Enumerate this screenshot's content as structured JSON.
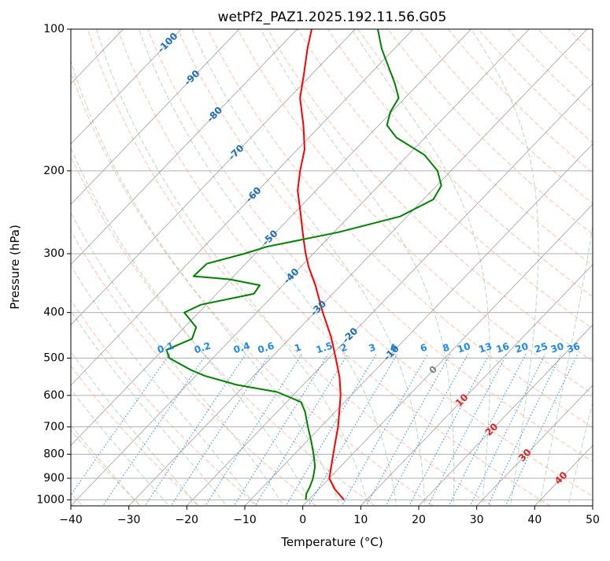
{
  "chart_data": {
    "type": "line",
    "subtype": "skew-t log-p thermodynamic diagram",
    "title": "wetPf2_PAZ1.2025.192.11.56.G05",
    "xlabel": "Temperature (°C)",
    "ylabel": "Pressure (hPa)",
    "xlim": [
      -40,
      50
    ],
    "ylim": [
      1030,
      100
    ],
    "y_scale": "log",
    "x_ticks": [
      -40,
      -30,
      -20,
      -10,
      0,
      10,
      20,
      30,
      40,
      50
    ],
    "x_tick_labels": [
      "−40",
      "−30",
      "−20",
      "−10",
      "0",
      "10",
      "20",
      "30",
      "40",
      "50"
    ],
    "y_ticks": [
      100,
      200,
      300,
      400,
      500,
      600,
      700,
      800,
      900,
      1000
    ],
    "y_tick_labels": [
      "100",
      "200",
      "300",
      "400",
      "500",
      "600",
      "700",
      "800",
      "900",
      "1000"
    ],
    "grid": true,
    "skew_isotherm_labels": [
      "-100",
      "-90",
      "-80",
      "-70",
      "-60",
      "-50",
      "-40",
      "-30",
      "-20",
      "-10",
      "0",
      "10",
      "20",
      "30",
      "40"
    ],
    "mixing_ratio_labels": [
      "0.1",
      "0.2",
      "0.4",
      "0.6",
      "1",
      "1.5",
      "2",
      "3",
      "4",
      "6",
      "8",
      "10",
      "13",
      "16",
      "20",
      "25",
      "30",
      "36"
    ],
    "colors": {
      "temperature": "#ff0000",
      "dewpoint": "#008000",
      "isotherm": "#808080",
      "dry_adiabat": "#ff8c69",
      "moist_adiabat": "#8fbc8f",
      "mixing_ratio": "#1e88e5",
      "label_cold": "#1f6fb0",
      "label_zero": "#808080",
      "label_warm": "#d62728",
      "mixing_label": "#1e88e5"
    },
    "series": [
      {
        "name": "Temperature",
        "points": [
          {
            "p": 1000,
            "t": 6.1
          },
          {
            "p": 950,
            "t": 2.8
          },
          {
            "p": 900,
            "t": 0.0
          },
          {
            "p": 850,
            "t": -1.6
          },
          {
            "p": 800,
            "t": -3.3
          },
          {
            "p": 750,
            "t": -5.1
          },
          {
            "p": 700,
            "t": -7.0
          },
          {
            "p": 650,
            "t": -9.3
          },
          {
            "p": 600,
            "t": -11.8
          },
          {
            "p": 550,
            "t": -14.9
          },
          {
            "p": 500,
            "t": -18.8
          },
          {
            "p": 450,
            "t": -23.2
          },
          {
            "p": 400,
            "t": -28.6
          },
          {
            "p": 350,
            "t": -34.4
          },
          {
            "p": 320,
            "t": -38.6
          },
          {
            "p": 300,
            "t": -41.3
          },
          {
            "p": 280,
            "t": -44.0
          },
          {
            "p": 250,
            "t": -48.3
          },
          {
            "p": 220,
            "t": -53.2
          },
          {
            "p": 200,
            "t": -56.0
          },
          {
            "p": 180,
            "t": -58.8
          },
          {
            "p": 160,
            "t": -63.0
          },
          {
            "p": 140,
            "t": -68.1
          },
          {
            "p": 125,
            "t": -71.3
          },
          {
            "p": 110,
            "t": -75.0
          },
          {
            "p": 100,
            "t": -77.5
          }
        ]
      },
      {
        "name": "Dewpoint",
        "points": [
          {
            "p": 1000,
            "t": -0.5
          },
          {
            "p": 970,
            "t": -1.4
          },
          {
            "p": 940,
            "t": -1.9
          },
          {
            "p": 900,
            "t": -2.8
          },
          {
            "p": 850,
            "t": -4.4
          },
          {
            "p": 800,
            "t": -6.7
          },
          {
            "p": 750,
            "t": -9.3
          },
          {
            "p": 700,
            "t": -12.2
          },
          {
            "p": 650,
            "t": -15.2
          },
          {
            "p": 620,
            "t": -17.5
          },
          {
            "p": 590,
            "t": -23.3
          },
          {
            "p": 570,
            "t": -31.4
          },
          {
            "p": 545,
            "t": -38.5
          },
          {
            "p": 530,
            "t": -41.8
          },
          {
            "p": 500,
            "t": -47.5
          },
          {
            "p": 480,
            "t": -49.4
          },
          {
            "p": 455,
            "t": -46.8
          },
          {
            "p": 430,
            "t": -48.0
          },
          {
            "p": 400,
            "t": -52.5
          },
          {
            "p": 385,
            "t": -50.9
          },
          {
            "p": 365,
            "t": -43.6
          },
          {
            "p": 350,
            "t": -44.0
          },
          {
            "p": 340,
            "t": -50.2
          },
          {
            "p": 335,
            "t": -56.9
          },
          {
            "p": 315,
            "t": -56.7
          },
          {
            "p": 300,
            "t": -51.9
          },
          {
            "p": 290,
            "t": -49.2
          },
          {
            "p": 270,
            "t": -39.2
          },
          {
            "p": 250,
            "t": -31.2
          },
          {
            "p": 230,
            "t": -28.3
          },
          {
            "p": 215,
            "t": -29.2
          },
          {
            "p": 200,
            "t": -32.3
          },
          {
            "p": 185,
            "t": -37.2
          },
          {
            "p": 170,
            "t": -44.9
          },
          {
            "p": 160,
            "t": -48.6
          },
          {
            "p": 150,
            "t": -50.2
          },
          {
            "p": 140,
            "t": -51.1
          },
          {
            "p": 130,
            "t": -54.3
          },
          {
            "p": 120,
            "t": -58.1
          },
          {
            "p": 110,
            "t": -62.2
          },
          {
            "p": 100,
            "t": -66.1
          }
        ]
      }
    ]
  }
}
